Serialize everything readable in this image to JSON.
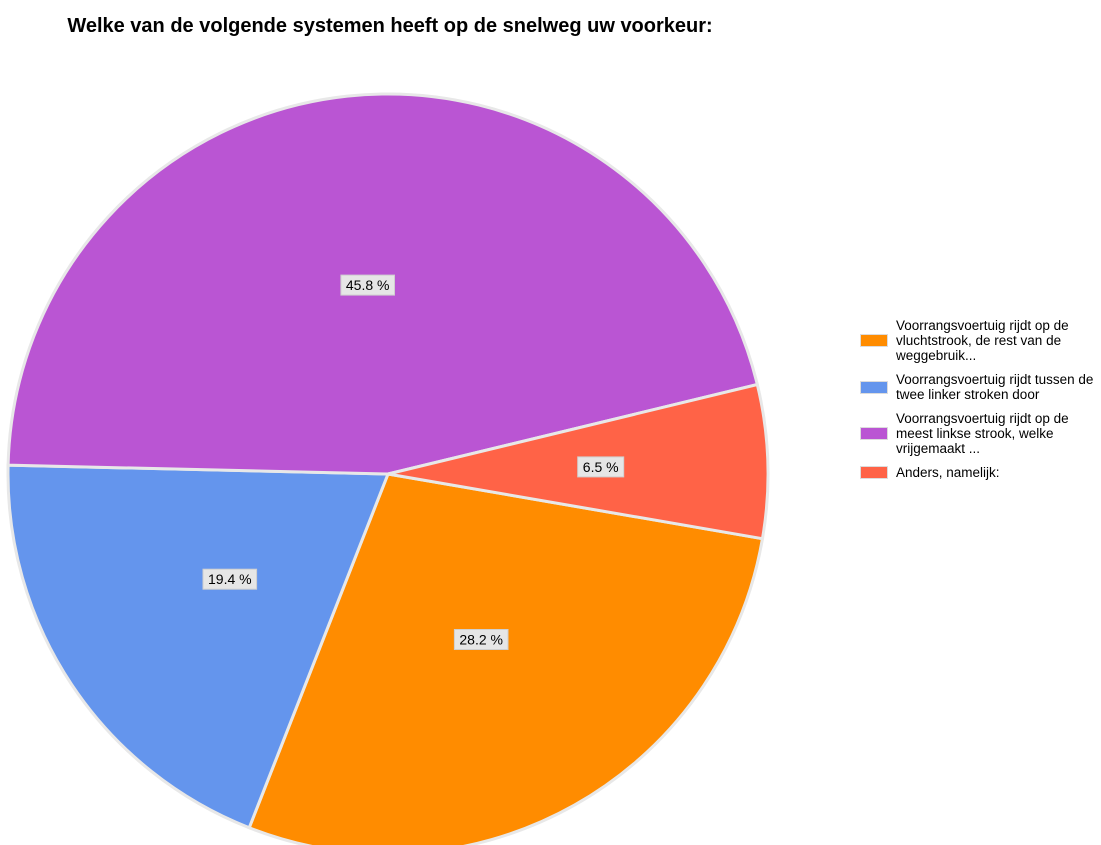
{
  "chart_data": {
    "type": "pie",
    "title": "Welke van de volgende systemen heeft op de snelweg uw voorkeur:",
    "categories": [
      "Voorrangsvoertuig rijdt op de vluchtstrook, de rest van de weggebruik...",
      "Voorrangsvoertuig rijdt tussen de twee linker stroken door",
      "Voorrangsvoertuig rijdt op de meest linkse strook, welke vrijgemaakt ...",
      "Anders, namelijk:"
    ],
    "values": [
      28.2,
      19.4,
      45.8,
      6.5
    ],
    "data_labels": [
      "28.2 %",
      "19.4 %",
      "45.8 %",
      "6.5 %"
    ],
    "colors": [
      "#ff8c00",
      "#6495ed",
      "#ba55d3",
      "#ff6347"
    ],
    "legend_position": "right"
  }
}
